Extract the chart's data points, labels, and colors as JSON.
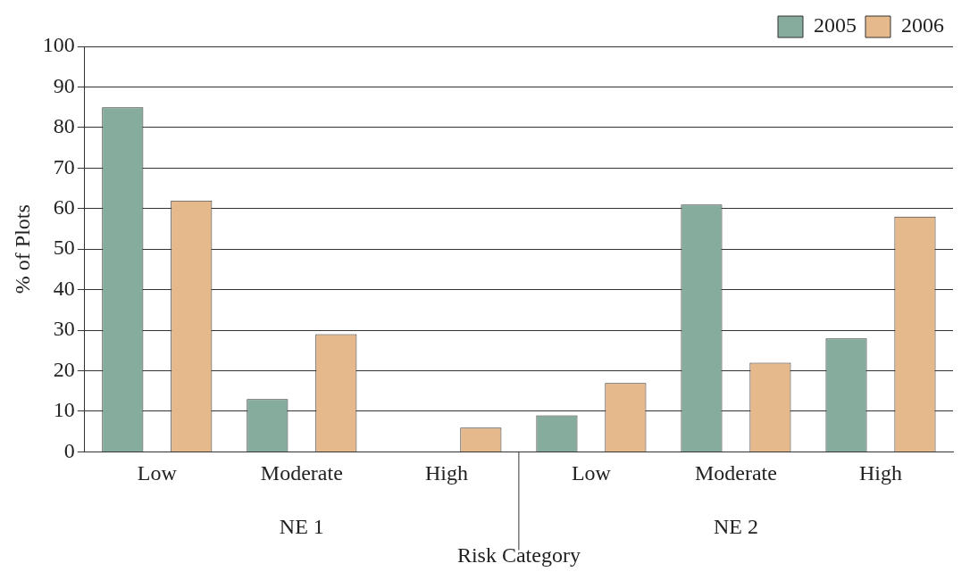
{
  "chart_data": {
    "type": "bar",
    "xlabel": "Risk Category",
    "ylabel": "% of Plots",
    "categories": [
      "Low",
      "Moderate",
      "High",
      "Low",
      "Moderate",
      "High"
    ],
    "series": [
      {
        "name": "2005",
        "color": "#85ac9c",
        "values": [
          85,
          13,
          0,
          9,
          61,
          28
        ]
      },
      {
        "name": "2006",
        "color": "#e6b98c",
        "values": [
          62,
          29,
          6,
          17,
          22,
          58
        ]
      }
    ],
    "ylim": [
      0,
      100
    ],
    "yticks": [
      0,
      10,
      20,
      30,
      40,
      50,
      60,
      70,
      80,
      90,
      100
    ],
    "grid": "y",
    "legend": "top right",
    "annotations": [
      "NE 1",
      "NE 2"
    ]
  }
}
